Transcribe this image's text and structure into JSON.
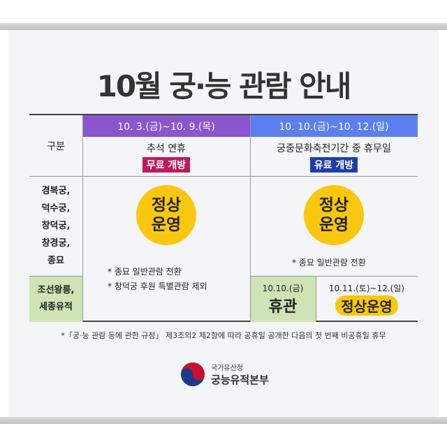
{
  "title": "10월 궁·능 관람 안내",
  "table": {
    "header_label": "구분",
    "period1": {
      "dates": "10. 3.(금)~10. 9.(목)",
      "desc": "추석 연휴",
      "badge": "무료 개방",
      "color": "#8a55cf",
      "badge_color": "#c2185b"
    },
    "period2": {
      "dates": "10. 10.(금)~10. 12.(일)",
      "desc": "궁중문화축전기간 중 휴무일",
      "badge": "유료 개방",
      "color": "#5b7ff0",
      "badge_color": "#1e3fa8"
    },
    "group1_label": [
      "경복궁,",
      "덕수궁,",
      "창덕궁,",
      "창경궁,",
      "종묘"
    ],
    "group2_label": [
      "조선왕릉,",
      "세종유적"
    ],
    "p1_status": [
      "정상",
      "운영"
    ],
    "p1_notes": [
      "* 종묘 일반관람 전환",
      "* 창덕궁 후원 특별관람 제외"
    ],
    "p2_status": [
      "정상",
      "운영"
    ],
    "p2_note": "* 종묘 일반관람 전환",
    "p2_g2_a": {
      "date": "10.10.(금)",
      "status": "휴관"
    },
    "p2_g2_b": {
      "date": "10.11.(토)~12.(일)",
      "status": "정상운영"
    }
  },
  "footnote": "*「궁·능 관람 등에 관한 규정」 제3조의2 제2항에 따라 공휴일 공개한 다음의 첫 번째 비공휴일 휴무",
  "logo": {
    "org_top": "국가유산청",
    "org_main": "궁능유적본부",
    "icon": "taegeuk-icon"
  }
}
